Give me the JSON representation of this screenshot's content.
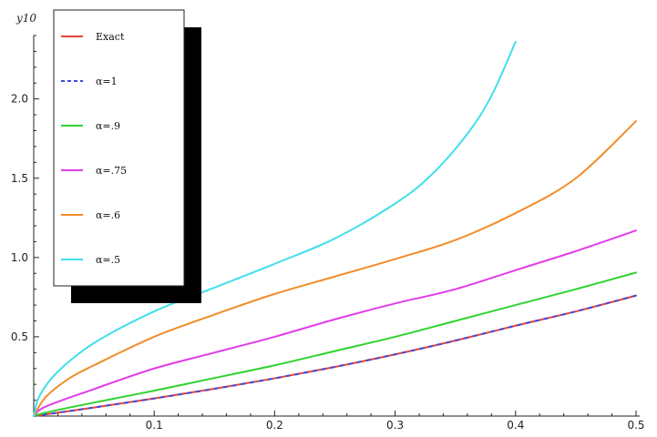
{
  "chart_data": {
    "type": "line",
    "title": "",
    "xlabel": "",
    "ylabel": "y10",
    "xlim": [
      0,
      0.5
    ],
    "ylim": [
      0,
      2.4
    ],
    "x_ticks": [
      "0.1",
      "0.2",
      "0.3",
      "0.4",
      "0.5"
    ],
    "y_ticks": [
      "0.5",
      "1.0",
      "1.5",
      "2.0"
    ],
    "grid": false,
    "legend_placement": "top-left",
    "series": [
      {
        "name": "Exact",
        "color": "#e8423a",
        "x": [
          0,
          0.05,
          0.1,
          0.15,
          0.2,
          0.25,
          0.3,
          0.35,
          0.4,
          0.45,
          0.5
        ],
        "y": [
          0,
          0.054,
          0.111,
          0.172,
          0.238,
          0.31,
          0.389,
          0.476,
          0.57,
          0.66,
          0.76
        ]
      },
      {
        "name": "α=1",
        "color": "#3a4ae0",
        "dashed": true,
        "x": [
          0,
          0.05,
          0.1,
          0.15,
          0.2,
          0.25,
          0.3,
          0.35,
          0.4,
          0.45,
          0.5
        ],
        "y": [
          0,
          0.054,
          0.111,
          0.172,
          0.238,
          0.31,
          0.389,
          0.476,
          0.57,
          0.66,
          0.76
        ]
      },
      {
        "name": "α=.9",
        "color": "#2fd32f",
        "x": [
          0,
          0.01,
          0.05,
          0.1,
          0.15,
          0.2,
          0.25,
          0.3,
          0.35,
          0.4,
          0.45,
          0.5
        ],
        "y": [
          0,
          0.022,
          0.085,
          0.16,
          0.24,
          0.32,
          0.41,
          0.5,
          0.6,
          0.7,
          0.8,
          0.905
        ]
      },
      {
        "name": "α=.75",
        "color": "#e23de8",
        "x": [
          0,
          0.01,
          0.05,
          0.1,
          0.15,
          0.2,
          0.25,
          0.3,
          0.35,
          0.4,
          0.45,
          0.5
        ],
        "y": [
          0,
          0.06,
          0.17,
          0.3,
          0.4,
          0.5,
          0.61,
          0.71,
          0.8,
          0.92,
          1.04,
          1.17
        ]
      },
      {
        "name": "α=.6",
        "color": "#f28c2a",
        "x": [
          0,
          0.01,
          0.03,
          0.05,
          0.1,
          0.15,
          0.2,
          0.25,
          0.3,
          0.35,
          0.4,
          0.45,
          0.5
        ],
        "y": [
          0,
          0.12,
          0.24,
          0.32,
          0.5,
          0.64,
          0.77,
          0.88,
          0.99,
          1.11,
          1.28,
          1.5,
          1.86
        ]
      },
      {
        "name": "α=.5",
        "color": "#3fe0ea",
        "x": [
          0,
          0.005,
          0.02,
          0.05,
          0.1,
          0.15,
          0.2,
          0.25,
          0.3,
          0.33,
          0.36,
          0.38,
          0.4
        ],
        "y": [
          0,
          0.13,
          0.28,
          0.46,
          0.66,
          0.81,
          0.96,
          1.12,
          1.34,
          1.52,
          1.78,
          2.02,
          2.36
        ]
      }
    ]
  }
}
